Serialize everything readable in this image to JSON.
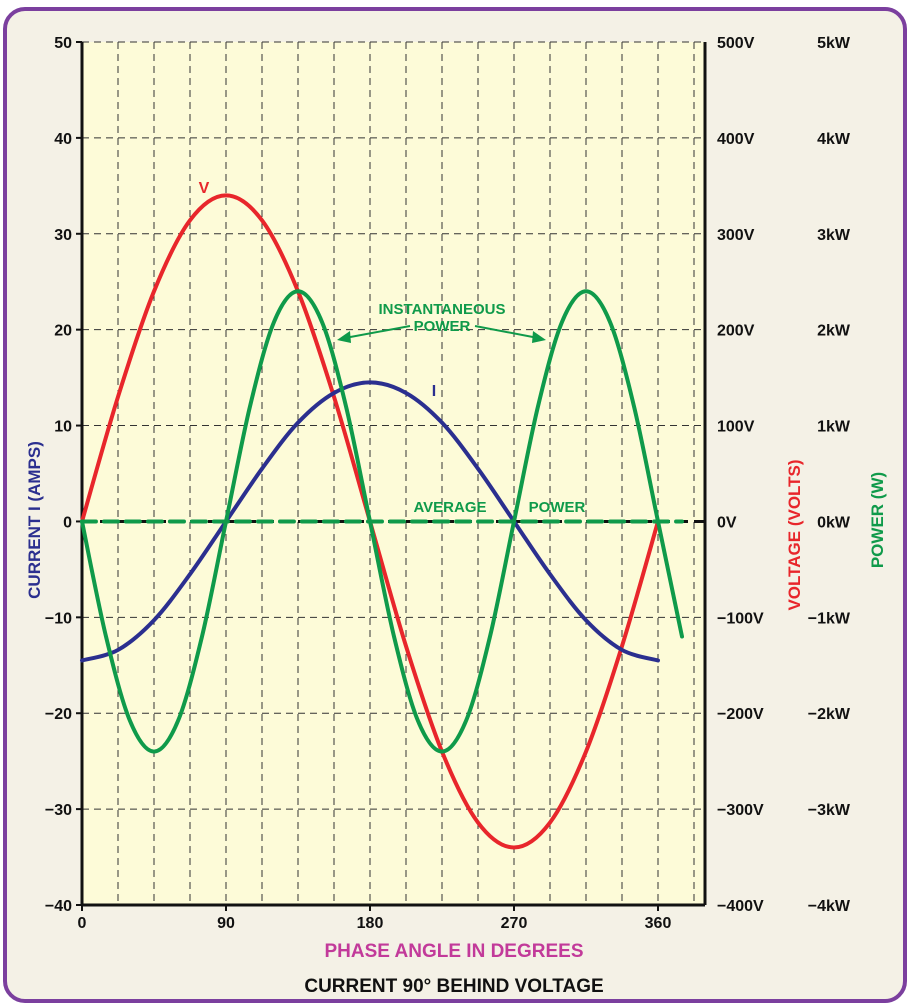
{
  "chart_data": {
    "type": "line",
    "subtitle": "CURRENT 90° BEHIND VOLTAGE",
    "xlabel": "PHASE ANGLE IN DEGREES",
    "xlim": [
      0,
      420
    ],
    "x_ticks": [
      "0",
      "90",
      "180",
      "270",
      "360"
    ],
    "axes": {
      "current": {
        "label": "CURRENT I (AMPS)",
        "ylim": [
          -40,
          50
        ],
        "ticks": [
          "50",
          "40",
          "30",
          "20",
          "10",
          "0",
          "−10",
          "−20",
          "−30",
          "−40"
        ]
      },
      "voltage": {
        "label": "VOLTAGE (VOLTS)",
        "ylim": [
          -400,
          500
        ],
        "ticks": [
          "500V",
          "400V",
          "300V",
          "200V",
          "100V",
          "0V",
          "−100V",
          "−200V",
          "−300V",
          "−400V"
        ]
      },
      "power": {
        "label": "POWER (W)",
        "ylim": [
          -4000,
          5000
        ],
        "ticks": [
          "5kW",
          "4kW",
          "3kW",
          "2kW",
          "1kW",
          "0kW",
          "−1kW",
          "−2kW",
          "−3kW",
          "−4kW"
        ]
      }
    },
    "series": [
      {
        "name": "V",
        "axis": "voltage",
        "x": [
          0,
          22.5,
          45,
          67.5,
          90,
          112.5,
          135,
          157.5,
          180,
          202.5,
          225,
          247.5,
          270,
          292.5,
          315,
          337.5,
          360
        ],
        "y": [
          0,
          130,
          240,
          314,
          340,
          314,
          240,
          130,
          0,
          -130,
          -240,
          -314,
          -340,
          -314,
          -240,
          -130,
          0
        ]
      },
      {
        "name": "I",
        "axis": "current",
        "x": [
          0,
          22.5,
          45,
          67.5,
          90,
          112.5,
          135,
          157.5,
          180,
          202.5,
          225,
          247.5,
          270,
          292.5,
          315,
          337.5,
          360
        ],
        "y": [
          -14.5,
          -13.4,
          -10.3,
          -5.5,
          0,
          5.5,
          10.3,
          13.4,
          14.5,
          13.4,
          10.3,
          5.5,
          0,
          -5.5,
          -10.3,
          -13.4,
          -14.5
        ]
      },
      {
        "name": "INSTANTANEOUS POWER",
        "axis": "power",
        "x": [
          0,
          15,
          30,
          45,
          60,
          75,
          90,
          105,
          120,
          135,
          150,
          165,
          180,
          195,
          210,
          225,
          240,
          255,
          270,
          285,
          300,
          315,
          330,
          345,
          360,
          375
        ],
        "y": [
          0,
          -1200,
          -2080,
          -2400,
          -2080,
          -1200,
          0,
          1200,
          2080,
          2400,
          2080,
          1200,
          0,
          -1200,
          -2080,
          -2400,
          -2080,
          -1200,
          0,
          1200,
          2080,
          2400,
          2080,
          1200,
          0,
          -1200
        ]
      },
      {
        "name": "AVERAGE POWER",
        "axis": "power",
        "x": [
          0,
          375
        ],
        "y": [
          0,
          0
        ]
      }
    ],
    "annotations": {
      "v_label": "V",
      "i_label": "I",
      "inst_power_line1": "INSTANTANEOUS",
      "inst_power_line2": "POWER",
      "avg_power_word1": "AVERAGE",
      "avg_power_word2": "POWER"
    },
    "colors": {
      "voltage": "#e8262b",
      "current": "#2b2f8f",
      "power": "#0f9a4a",
      "plot_bg": "#fdfbd8",
      "frame": "#7b3f9e",
      "xlabel": "#c23a9a",
      "axis": "#111111"
    }
  }
}
